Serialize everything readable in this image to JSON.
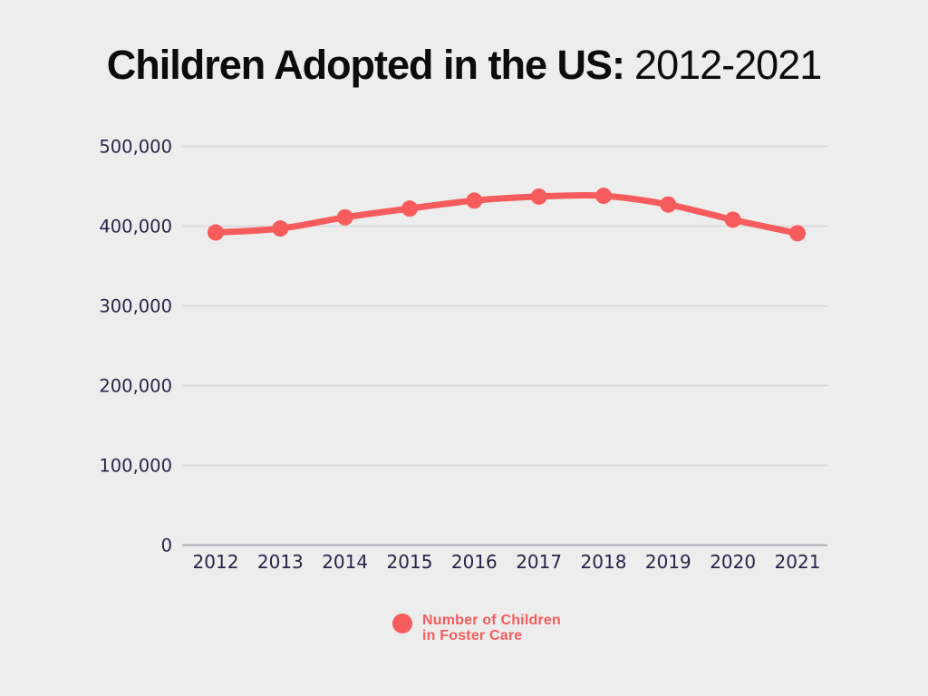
{
  "title": {
    "bold": "Children Adopted in the US:",
    "regular": "2012-2021"
  },
  "colors": {
    "background": "#ededed",
    "accent": "#f65c5c",
    "axis_text": "#2b2347",
    "gridline": "#d8d8dd",
    "zero_line": "#adadb6",
    "title_text": "#0c0c0c"
  },
  "chart_data": {
    "type": "line",
    "title": "Children Adopted in the US: 2012-2021",
    "categories": [
      "2012",
      "2013",
      "2014",
      "2015",
      "2016",
      "2017",
      "2018",
      "2019",
      "2020",
      "2021"
    ],
    "series": [
      {
        "name": "Number of Children in Foster Care",
        "values": [
          392000,
          397000,
          411000,
          422000,
          432000,
          437000,
          438000,
          427000,
          408000,
          391000
        ]
      }
    ],
    "xlabel": "",
    "ylabel": "",
    "ylim": [
      0,
      500000
    ],
    "yticks": [
      0,
      100000,
      200000,
      300000,
      400000,
      500000
    ],
    "ytick_labels": [
      "0",
      "100,000",
      "200,000",
      "300,000",
      "400,000",
      "500,000"
    ],
    "grid": true,
    "legend_position": "bottom"
  },
  "legend": {
    "line1": "Number of Children",
    "line2": "in Foster Care"
  }
}
